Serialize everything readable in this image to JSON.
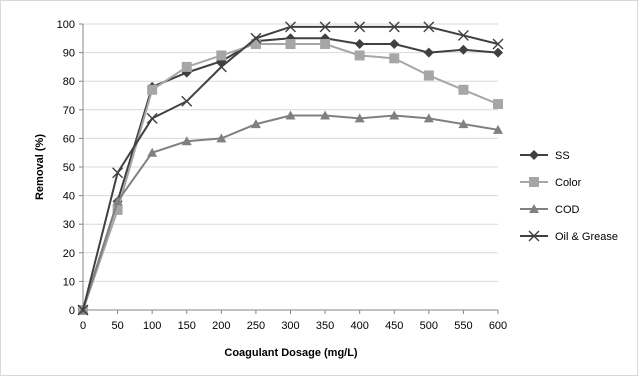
{
  "chart_data": {
    "type": "line",
    "xlabel": "Coagulant Dosage (mg/L)",
    "ylabel": "Removal (%)",
    "xlim": [
      0,
      600
    ],
    "ylim": [
      0,
      100
    ],
    "x_ticks": [
      0,
      50,
      100,
      150,
      200,
      250,
      300,
      350,
      400,
      450,
      500,
      550,
      600
    ],
    "y_ticks": [
      0,
      10,
      20,
      30,
      40,
      50,
      60,
      70,
      80,
      90,
      100
    ],
    "grid": "horizontal",
    "legend_position": "right",
    "x": [
      0,
      50,
      100,
      150,
      200,
      250,
      300,
      350,
      400,
      450,
      500,
      550,
      600
    ],
    "series": [
      {
        "name": "SS",
        "marker": "diamond",
        "color": "#404040",
        "values": [
          0,
          38,
          78,
          83,
          87,
          94,
          95,
          95,
          93,
          93,
          90,
          91,
          90
        ]
      },
      {
        "name": "Color",
        "marker": "square",
        "color": "#a6a6a6",
        "values": [
          0,
          35,
          77,
          85,
          89,
          93,
          93,
          93,
          89,
          88,
          82,
          77,
          72
        ]
      },
      {
        "name": "COD",
        "marker": "triangle",
        "color": "#808080",
        "values": [
          0,
          38,
          55,
          59,
          60,
          65,
          68,
          68,
          67,
          68,
          67,
          65,
          63
        ]
      },
      {
        "name": "Oil & Grease",
        "marker": "x",
        "color": "#404040",
        "values": [
          0,
          48,
          67,
          73,
          85,
          95,
          99,
          99,
          99,
          99,
          99,
          96,
          93
        ]
      }
    ]
  }
}
